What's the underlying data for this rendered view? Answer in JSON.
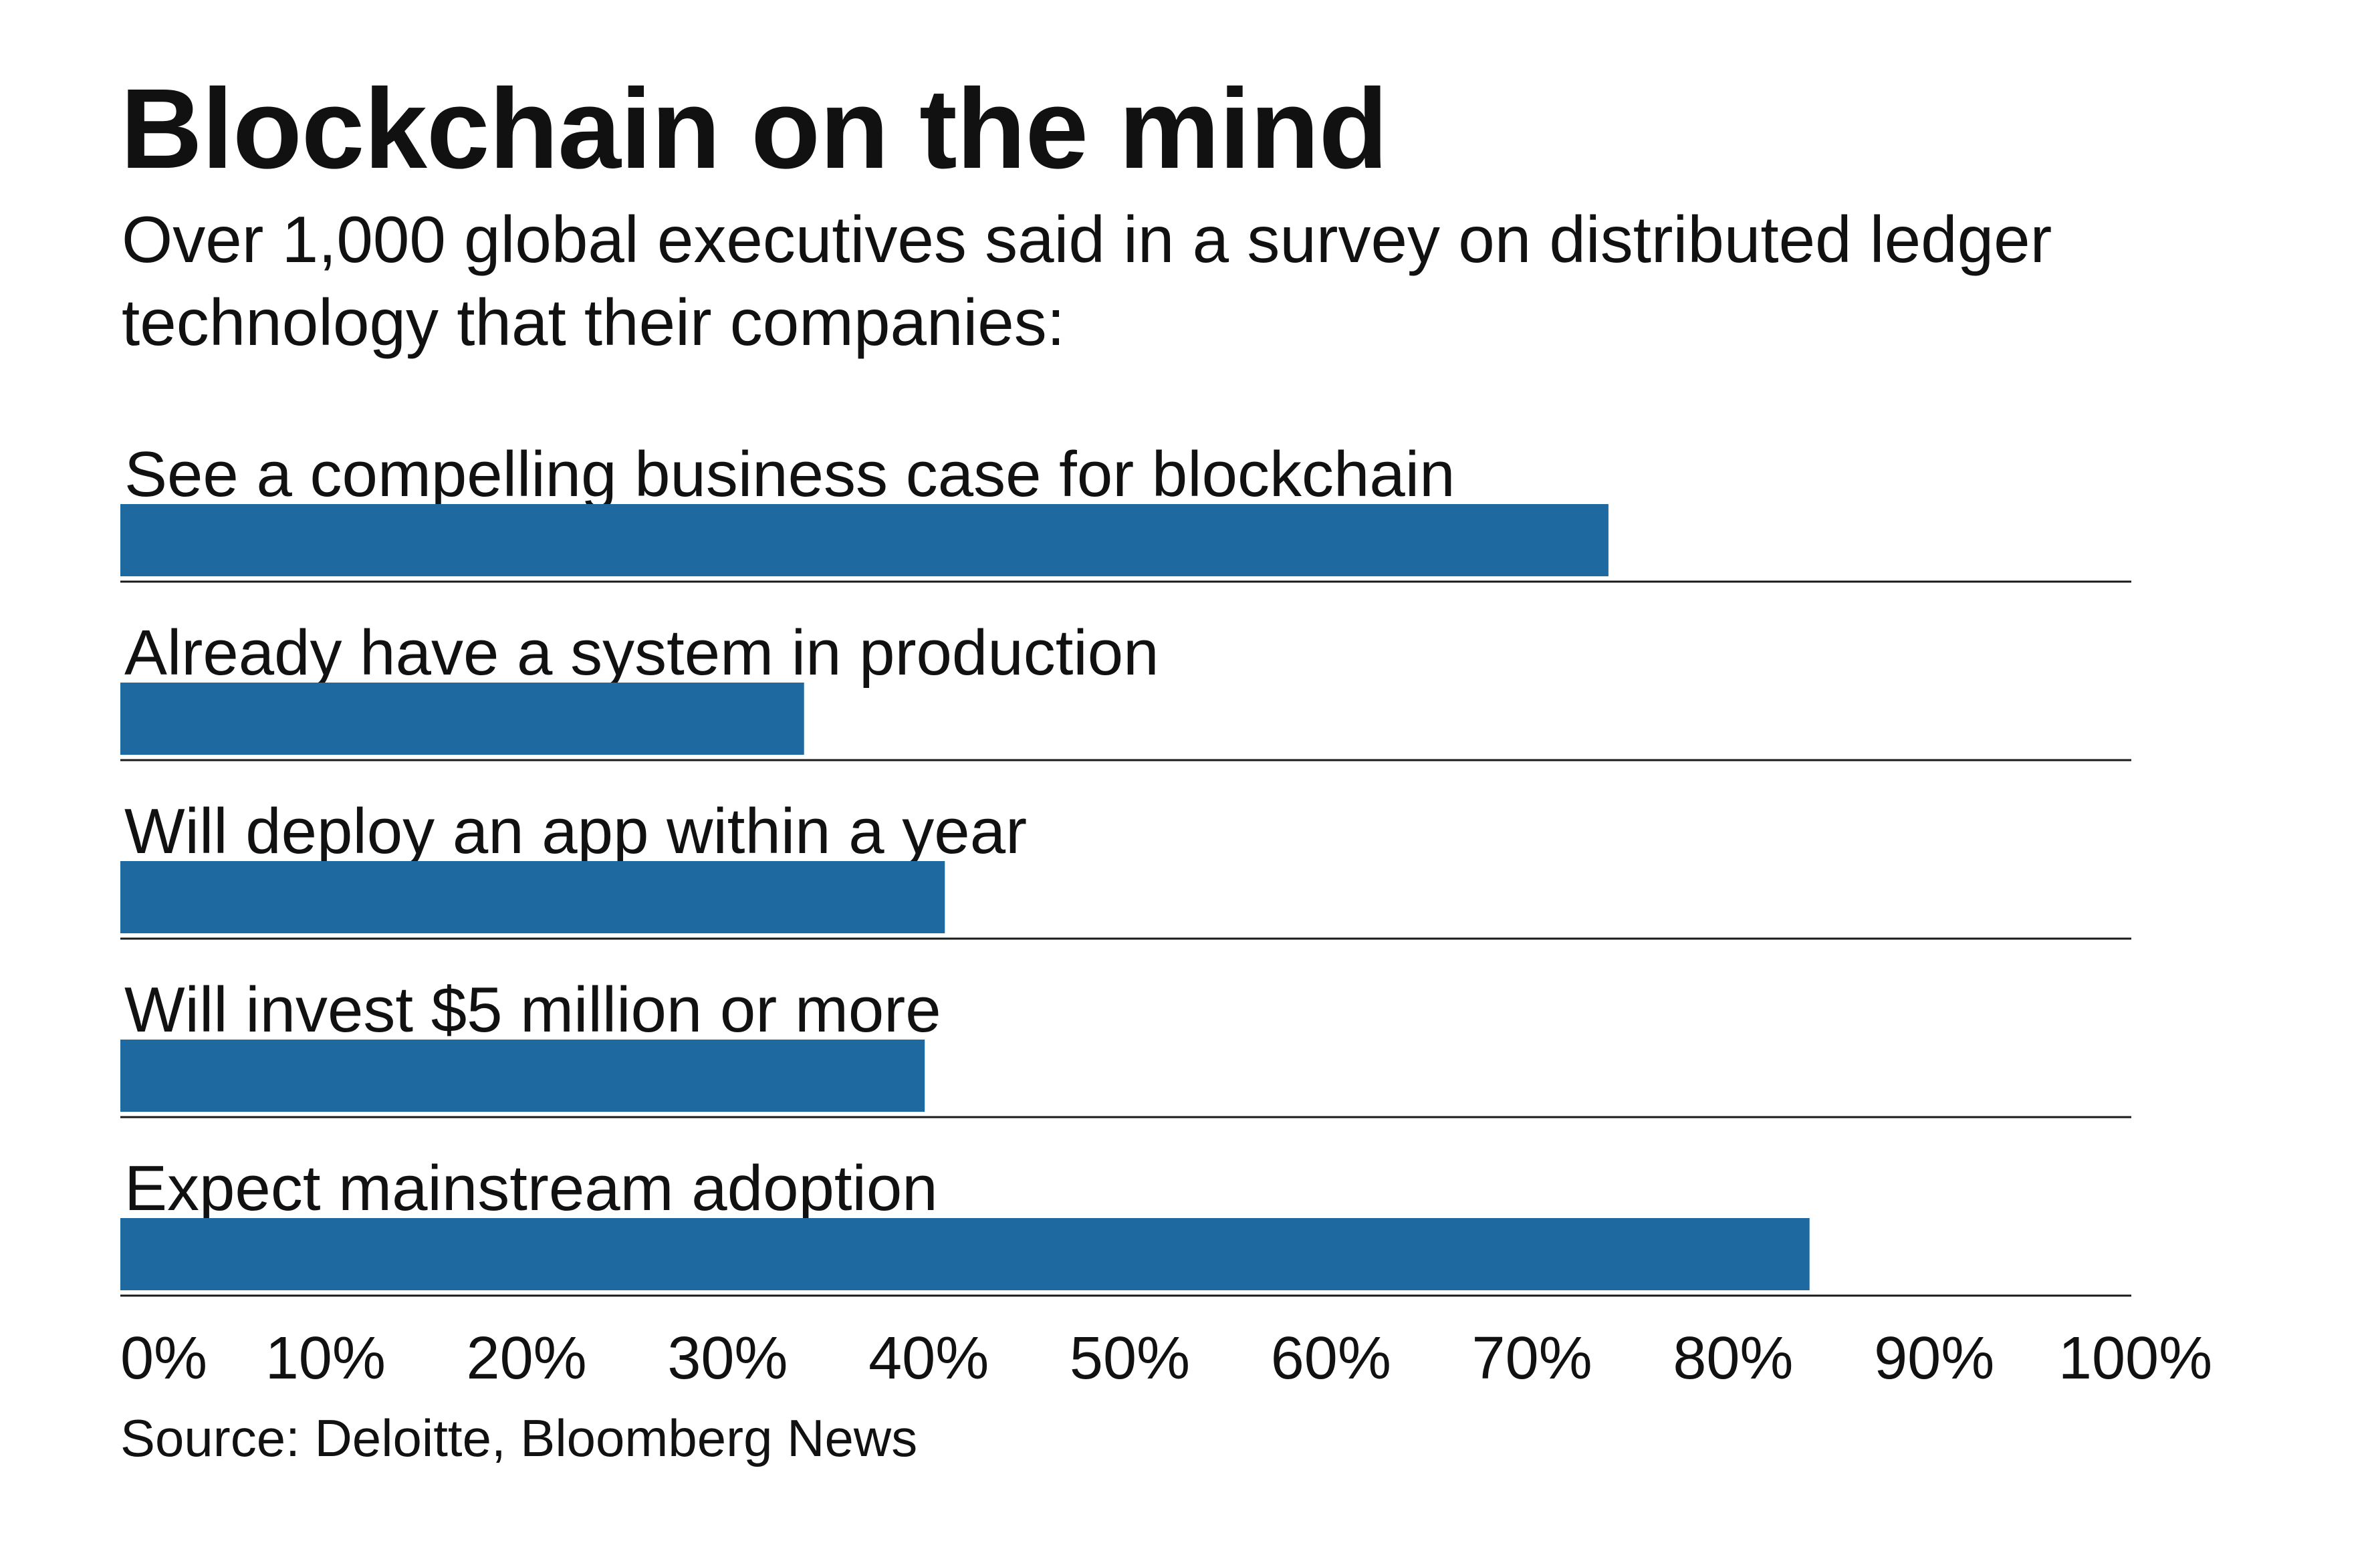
{
  "title": "Blockchain on the mind",
  "subtitle": "Over 1,000 global executives said in a survey on distributed ledger technology that their companies:",
  "source": "Source: Deloitte, Bloomberg News",
  "colors": {
    "bar": "#1f69a1",
    "rule": "#1a1a1a",
    "text": "#111111",
    "background": "#ffffff"
  },
  "chart_data": {
    "type": "bar",
    "orientation": "horizontal",
    "title": "Blockchain on the mind",
    "xlabel": "",
    "ylabel": "",
    "xlim": [
      0,
      100
    ],
    "categories": [
      "See a compelling business case for blockchain",
      "Already have a system in production",
      "Will deploy an app within a year",
      "Will invest $5 million or more",
      "Expect mainstream adoption"
    ],
    "values": [
      74,
      34,
      41,
      40,
      84
    ],
    "ticks": [
      0,
      10,
      20,
      30,
      40,
      50,
      60,
      70,
      80,
      90,
      100
    ],
    "tick_labels": [
      "0%",
      "10%",
      "20%",
      "30%",
      "40%",
      "50%",
      "60%",
      "70%",
      "80%",
      "90%",
      "100%"
    ],
    "grid": false,
    "legend": "none"
  }
}
